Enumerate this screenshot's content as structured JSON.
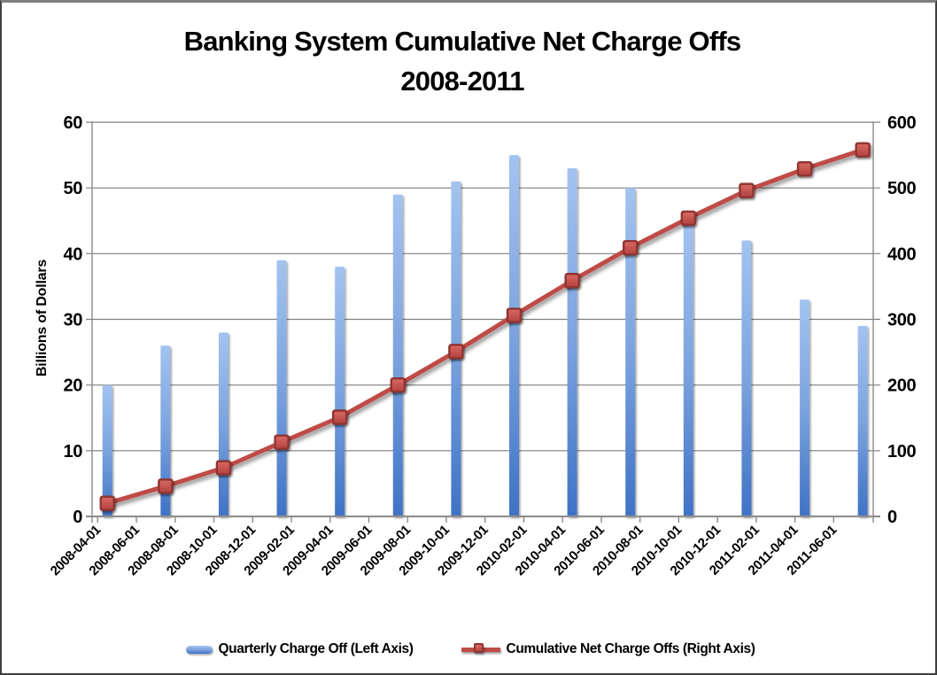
{
  "chart_data": {
    "type": "bar+line",
    "title": "Banking System Cumulative Net Charge Offs",
    "subtitle": "2008-2011",
    "legend_position": "bottom",
    "grid": true,
    "grid_color": "#7f7f7f",
    "background_color": "#ffffff",
    "y_left": {
      "label": "Billions of Dollars",
      "min": 0,
      "max": 60,
      "ticks": [
        0,
        10,
        20,
        30,
        40,
        50,
        60
      ]
    },
    "y_right": {
      "label": "",
      "min": 0,
      "max": 600,
      "ticks": [
        0,
        100,
        200,
        300,
        400,
        500,
        600
      ]
    },
    "x_tick_labels": [
      "2008-04-01",
      "2008-06-01",
      "2008-08-01",
      "2008-10-01",
      "2008-12-01",
      "2009-02-01",
      "2009-04-01",
      "2009-06-01",
      "2009-08-01",
      "2009-10-01",
      "2009-12-01",
      "2010-02-01",
      "2010-04-01",
      "2010-06-01",
      "2010-08-01",
      "2010-10-01",
      "2010-12-01",
      "2011-02-01",
      "2011-04-01",
      "2011-06-01"
    ],
    "series": [
      {
        "name": "Quarterly Charge Off (Left Axis)",
        "type": "bar",
        "axis": "left",
        "color_top": "#a3c3f0",
        "color_mid": "#7ba3de",
        "color_bottom": "#3f72c5",
        "values": [
          20,
          26,
          28,
          39,
          38,
          49,
          51,
          55,
          53,
          50,
          45,
          42,
          33,
          29
        ]
      },
      {
        "name": "Cumulative Net Charge Offs (Right Axis)",
        "type": "line",
        "axis": "right",
        "color": "#bf4b47",
        "marker": "square",
        "marker_fill_top": "#da6a64",
        "marker_fill_bottom": "#b2423f",
        "marker_stroke": "#8f3431",
        "values": [
          20,
          46,
          74,
          113,
          151,
          200,
          251,
          306,
          359,
          409,
          454,
          496,
          529,
          558
        ]
      }
    ]
  }
}
